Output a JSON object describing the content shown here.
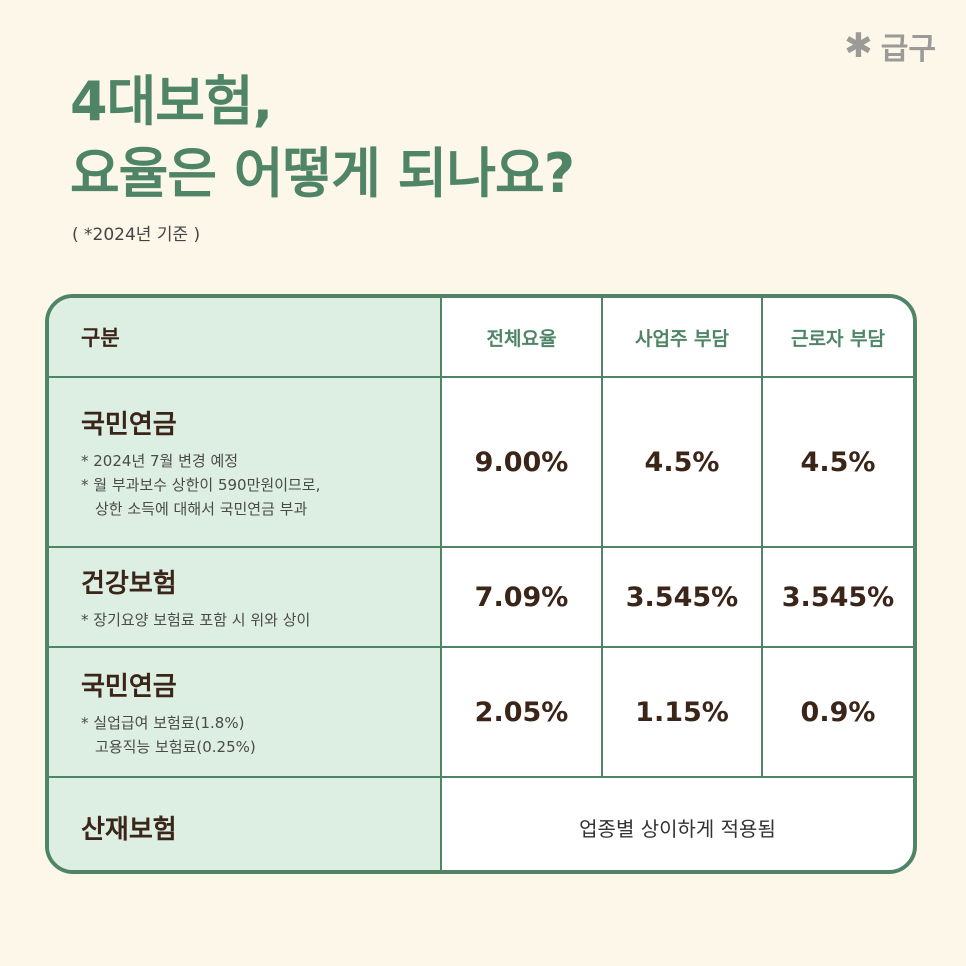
{
  "brand": {
    "name": "급구",
    "icon": "asterisk-icon"
  },
  "title": {
    "line1": "4대보험,",
    "line2": "요율은 어떻게 되나요?"
  },
  "basis": "( *2024년 기준 )",
  "colors": {
    "green": "#4f8566",
    "mint": "#ddeee3",
    "brown": "#3b2418",
    "background": "#fdf7ea"
  },
  "table": {
    "headers": [
      "구분",
      "전체요율",
      "사업주 부담",
      "근로자 부담"
    ],
    "rows": [
      {
        "name": "국민연금",
        "notes": [
          "* 2024년 7월 변경 예정",
          "* 월 부과보수 상한이 590만원이므로,",
          "상한 소득에 대해서 국민연금 부과"
        ],
        "total": "9.00%",
        "employer": "4.5%",
        "employee": "4.5%"
      },
      {
        "name": "건강보험",
        "notes": [
          "* 장기요양 보험료 포함 시 위와 상이"
        ],
        "total": "7.09%",
        "employer": "3.545%",
        "employee": "3.545%"
      },
      {
        "name": "국민연금",
        "notes": [
          "* 실업급여 보험료(1.8%)",
          "고용직능 보험료(0.25%)"
        ],
        "total": "2.05%",
        "employer": "1.15%",
        "employee": "0.9%"
      },
      {
        "name": "산재보험",
        "merged": "업종별 상이하게 적용됨"
      }
    ]
  }
}
